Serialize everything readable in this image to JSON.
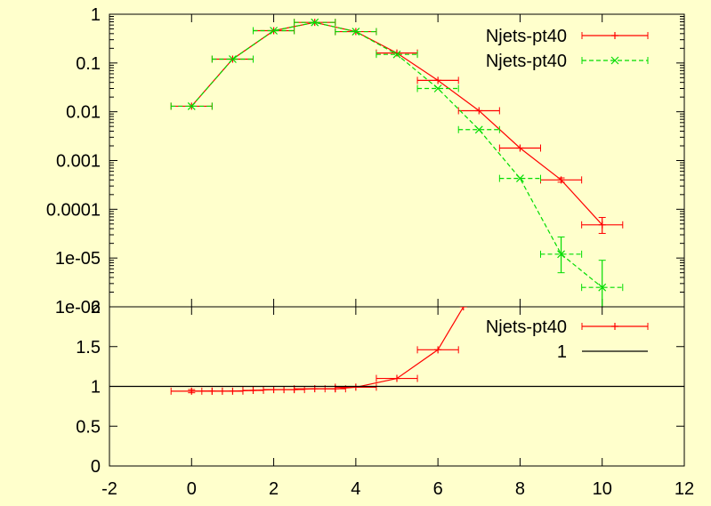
{
  "chart_data": [
    {
      "panel": "main",
      "type": "line",
      "y_scale": "log",
      "xlim": [
        -2,
        12
      ],
      "ylim": [
        1e-06,
        1
      ],
      "y_ticks": [
        "1",
        "0.1",
        "0.01",
        "0.001",
        "0.0001",
        "1e-05",
        "1e-06"
      ],
      "legend_position": "top-right",
      "series": [
        {
          "name": "Njets-pt40",
          "color": "#ff0000",
          "style": "solid-errorbars",
          "points": [
            {
              "x": 0,
              "y": 0.013,
              "xerr": 0.5
            },
            {
              "x": 1,
              "y": 0.12,
              "xerr": 0.5
            },
            {
              "x": 2,
              "y": 0.46,
              "xerr": 0.5
            },
            {
              "x": 3,
              "y": 0.68,
              "xerr": 0.5
            },
            {
              "x": 4,
              "y": 0.44,
              "xerr": 0.5
            },
            {
              "x": 5,
              "y": 0.16,
              "xerr": 0.5
            },
            {
              "x": 6,
              "y": 0.044,
              "xerr": 0.5
            },
            {
              "x": 7,
              "y": 0.0105,
              "xerr": 0.5
            },
            {
              "x": 8,
              "y": 0.0018,
              "xerr": 0.5
            },
            {
              "x": 9,
              "y": 0.0004,
              "xerr": 0.5,
              "ylo": 0.00036,
              "yhi": 0.00044
            },
            {
              "x": 10,
              "y": 4.8e-05,
              "xerr": 0.5,
              "ylo": 3.2e-05,
              "yhi": 6.8e-05
            }
          ]
        },
        {
          "name": "Njets-pt40",
          "color": "#00dd00",
          "style": "dashed-errorbars",
          "points": [
            {
              "x": 0,
              "y": 0.013,
              "xerr": 0.5
            },
            {
              "x": 1,
              "y": 0.12,
              "xerr": 0.5
            },
            {
              "x": 2,
              "y": 0.46,
              "xerr": 0.5
            },
            {
              "x": 3,
              "y": 0.68,
              "xerr": 0.5
            },
            {
              "x": 4,
              "y": 0.44,
              "xerr": 0.5
            },
            {
              "x": 5,
              "y": 0.15,
              "xerr": 0.5
            },
            {
              "x": 6,
              "y": 0.03,
              "xerr": 0.5
            },
            {
              "x": 7,
              "y": 0.0043,
              "xerr": 0.5
            },
            {
              "x": 8,
              "y": 0.00043,
              "xerr": 0.5
            },
            {
              "x": 9,
              "y": 1.2e-05,
              "xerr": 0.5,
              "ylo": 5e-06,
              "yhi": 2.7e-05
            },
            {
              "x": 10,
              "y": 2.5e-06,
              "xerr": 0.5,
              "ylo": 1e-06,
              "yhi": 9e-06
            }
          ]
        }
      ]
    },
    {
      "panel": "ratio",
      "type": "line",
      "xlim": [
        -2,
        12
      ],
      "ylim": [
        0,
        2
      ],
      "x_ticks": [
        "-2",
        "0",
        "2",
        "4",
        "6",
        "8",
        "10",
        "12"
      ],
      "y_ticks": [
        "0",
        "0.5",
        "1",
        "1.5",
        "2"
      ],
      "legend_position": "top-right",
      "series": [
        {
          "name": "Njets-pt40",
          "color": "#ff0000",
          "style": "solid-errorbars",
          "points": [
            {
              "x": 0,
              "y": 0.94,
              "xerr": 0.5,
              "ylo": 0.92,
              "yhi": 0.96
            },
            {
              "x": 0.5,
              "y": 0.94,
              "xerr": 0.25
            },
            {
              "x": 1,
              "y": 0.94,
              "xerr": 0.25
            },
            {
              "x": 1.5,
              "y": 0.95,
              "xerr": 0.25
            },
            {
              "x": 2,
              "y": 0.96,
              "xerr": 0.25
            },
            {
              "x": 2.5,
              "y": 0.96,
              "xerr": 0.25
            },
            {
              "x": 3,
              "y": 0.97,
              "xerr": 0.5
            },
            {
              "x": 3.5,
              "y": 0.97,
              "xerr": 0.25
            },
            {
              "x": 4,
              "y": 0.99,
              "xerr": 0.5
            },
            {
              "x": 5,
              "y": 1.1,
              "xerr": 0.5
            },
            {
              "x": 6,
              "y": 1.46,
              "xerr": 0.5
            },
            {
              "x": 6.62,
              "y": 2.0
            }
          ]
        },
        {
          "name": "1",
          "color": "#000000",
          "style": "reference-line",
          "points": [
            {
              "x": -2,
              "y": 1
            },
            {
              "x": 12,
              "y": 1
            }
          ]
        }
      ]
    }
  ]
}
